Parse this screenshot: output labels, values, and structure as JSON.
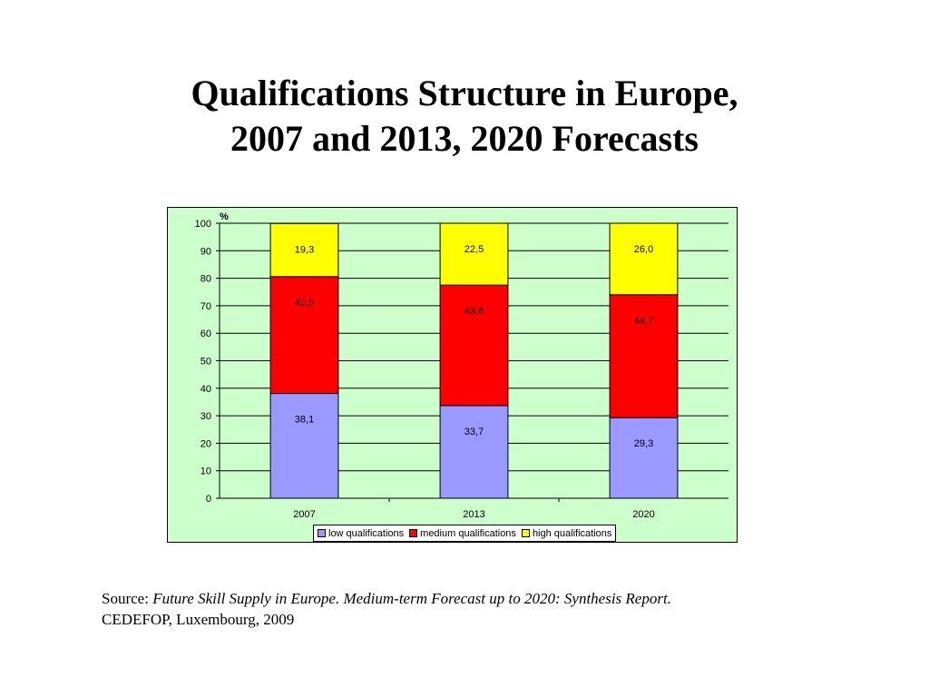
{
  "title": {
    "line1": "Qualifications Structure in Europe,",
    "line2": "2007 and 2013, 2020 Forecasts"
  },
  "source": {
    "prefix": "Source: ",
    "title": "Future Skill Supply in Europe. Medium-term Forecast up to 2020: Synthesis Report.",
    "publisher": "CEDEFOP, Luxembourg, 2009"
  },
  "colors": {
    "plot_background": "#ccffcc",
    "low": "#9999ff",
    "medium": "#ff0000",
    "high": "#ffff00"
  },
  "chart_data": {
    "type": "bar",
    "stacked": true,
    "categories": [
      "2007",
      "2013",
      "2020"
    ],
    "series": [
      {
        "name": "low  qualifications",
        "values": [
          38.1,
          33.7,
          29.3
        ],
        "labels": [
          "38,1",
          "33,7",
          "29,3"
        ]
      },
      {
        "name": "medium qualifications",
        "values": [
          42.5,
          43.8,
          44.7
        ],
        "labels": [
          "42,5",
          "43,8",
          "44,7"
        ]
      },
      {
        "name": "high qualifications",
        "values": [
          19.3,
          22.5,
          26.0
        ],
        "labels": [
          "19,3",
          "22,5",
          "26,0"
        ]
      }
    ],
    "ylabel": "%",
    "ylim": [
      0,
      100
    ],
    "yticks": [
      0,
      10,
      20,
      30,
      40,
      50,
      60,
      70,
      80,
      90,
      100
    ],
    "grid": true,
    "legend_position": "bottom"
  }
}
